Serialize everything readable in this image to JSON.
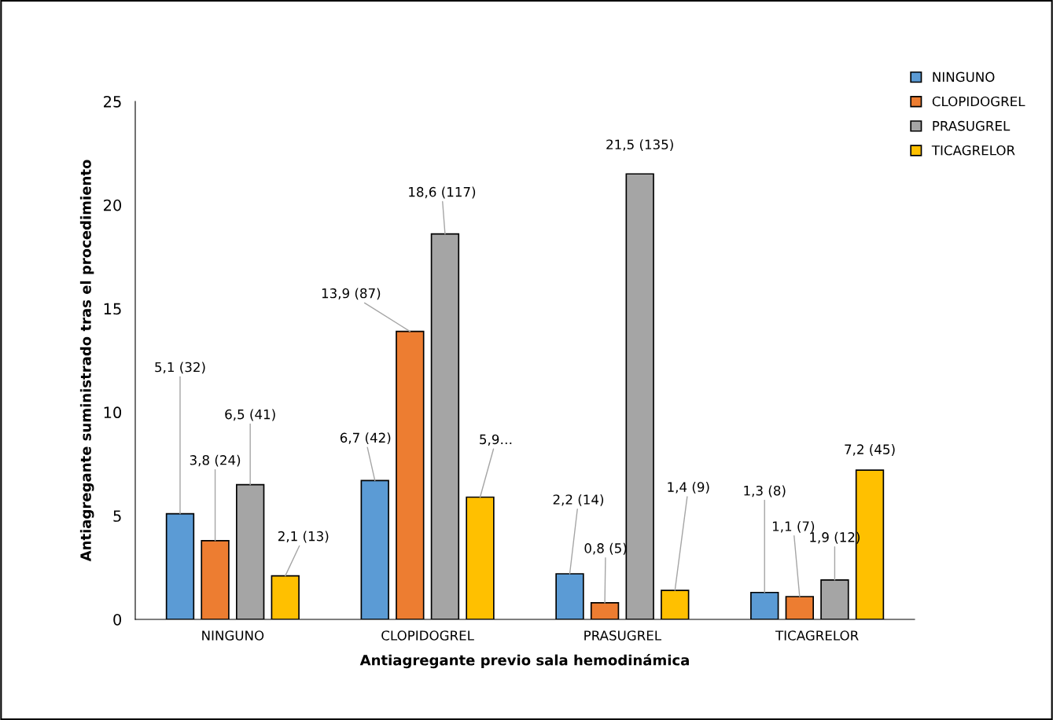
{
  "chart_data": {
    "type": "bar",
    "xlabel": "Antiagregante previo sala hemodinámica",
    "ylabel": "Antiagregante suministrado tras el procedimiento",
    "categories": [
      "NINGUNO",
      "CLOPIDOGREL",
      "PRASUGREL",
      "TICAGRELOR"
    ],
    "series": [
      {
        "name": "NINGUNO",
        "color": "#5b9bd5",
        "values": [
          5.1,
          6.7,
          2.2,
          1.3
        ],
        "value_labels": [
          "5,1 (32)",
          "6,7 (42)",
          "2,2 (14)",
          "1,3 (8)"
        ]
      },
      {
        "name": "CLOPIDOGREL",
        "color": "#ed7d31",
        "values": [
          3.8,
          13.9,
          0.8,
          1.1
        ],
        "value_labels": [
          "3,8 (24)",
          "13,9 (87)",
          "0,8 (5)",
          "1,1 (7)"
        ]
      },
      {
        "name": "PRASUGREL",
        "color": "#a5a5a5",
        "values": [
          6.5,
          18.6,
          21.5,
          1.9
        ],
        "value_labels": [
          "6,5 (41)",
          "18,6 (117)",
          "21,5 (135)",
          "1,9 (12)"
        ]
      },
      {
        "name": "TICAGRELOR",
        "color": "#ffc000",
        "values": [
          2.1,
          5.9,
          1.4,
          7.2
        ],
        "value_labels": [
          "2,1 (13)",
          "5,9…",
          "1,4 (9)",
          "7,2 (45)"
        ]
      }
    ],
    "ylim": [
      0,
      25
    ],
    "yticks": [
      0,
      5,
      10,
      15,
      20,
      25
    ],
    "grid": false,
    "legend": "top right"
  }
}
